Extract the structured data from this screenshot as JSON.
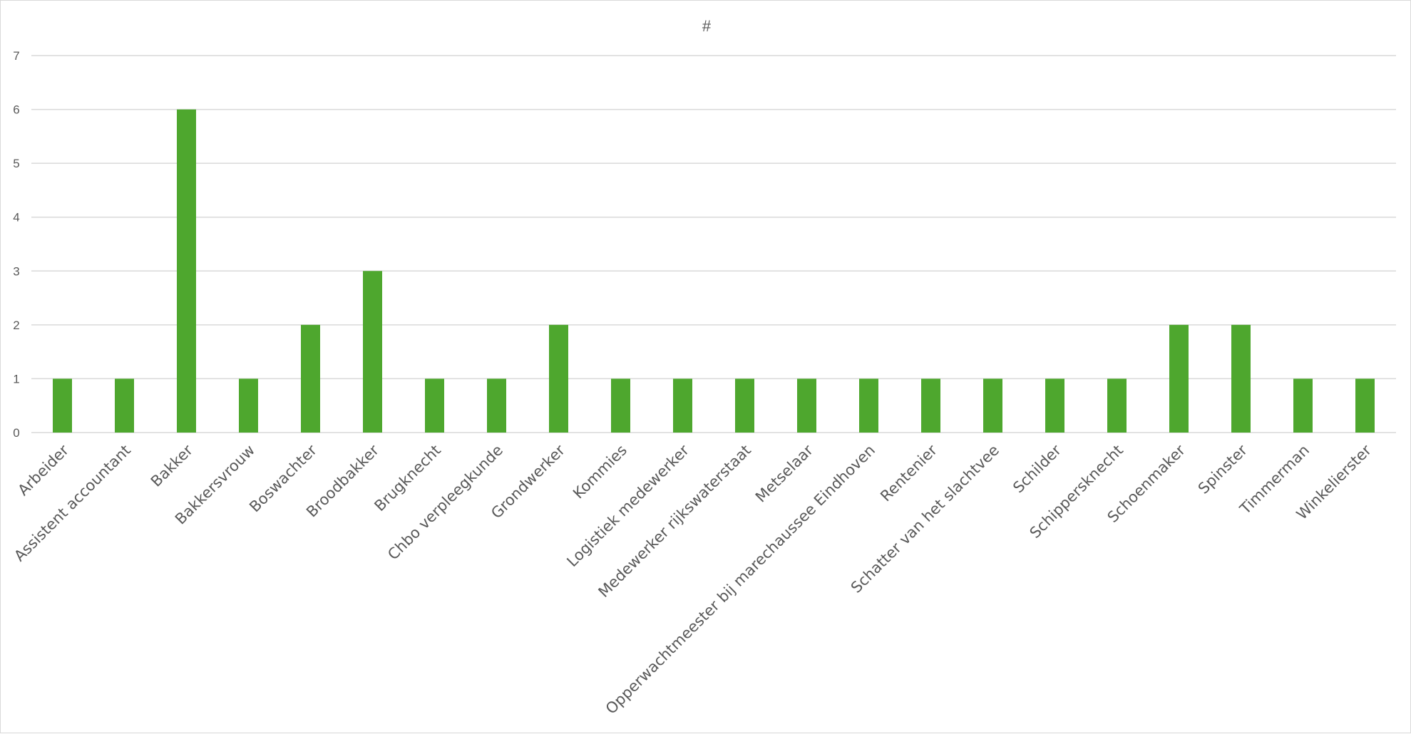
{
  "chart_data": {
    "type": "bar",
    "title": "#",
    "xlabel": "",
    "ylabel": "",
    "ylim": [
      0,
      7
    ],
    "yticks": [
      "0",
      "1",
      "2",
      "3",
      "4",
      "5",
      "6",
      "7"
    ],
    "grid": true,
    "legend": "none",
    "bar_color": "#4ea72e",
    "categories": [
      "Arbeider",
      "Assistent accountant",
      "Bakker",
      "Bakkersvrouw",
      "Boswachter",
      "Broodbakker",
      "Brugknecht",
      "Chbo verpleegkunde",
      "Grondwerker",
      "Kommies",
      "Logistiek medewerker",
      "Medewerker rijkswaterstaat",
      "Metselaar",
      "Opperwachtmeester bij marechaussee Eindhoven",
      "Rentenier",
      "Schatter van het slachtvee",
      "Schilder",
      "Schippersknecht",
      "Schoenmaker",
      "Spinster",
      "Timmerman",
      "Winkelierster"
    ],
    "values": [
      1,
      1,
      6,
      1,
      2,
      3,
      1,
      1,
      2,
      1,
      1,
      1,
      1,
      1,
      1,
      1,
      1,
      1,
      2,
      2,
      1,
      1
    ]
  }
}
